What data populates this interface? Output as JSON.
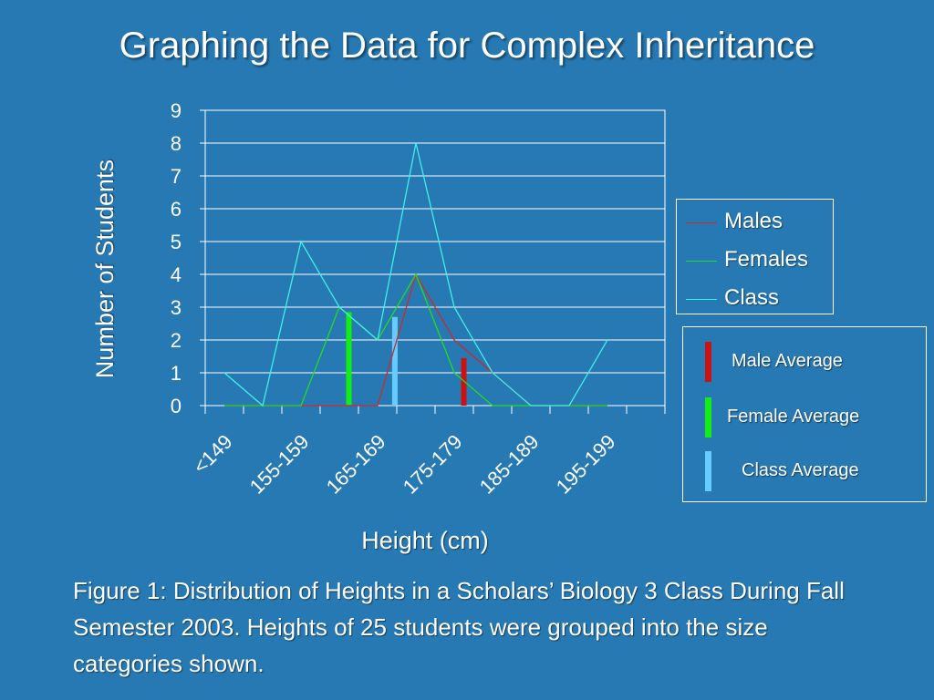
{
  "title": "Graphing the Data for Complex Inheritance",
  "caption": "Figure 1: Distribution of Heights in a Scholars’ Biology 3 Class During Fall Semester 2003. Heights of 25 students were grouped into the size categories shown.",
  "chart_data": {
    "type": "line",
    "xlabel": "Height (cm)",
    "ylabel": "Number of Students",
    "ylim": [
      0,
      9
    ],
    "yticks": [
      "0",
      "1",
      "2",
      "3",
      "4",
      "5",
      "6",
      "7",
      "8",
      "9"
    ],
    "x_tick_labels": [
      "<149",
      "155-159",
      "165-169",
      "175-179",
      "185-189",
      "195-199"
    ],
    "grid": true,
    "legend_position": "right",
    "x_range": [
      0,
      12
    ],
    "series": [
      {
        "name": "Males",
        "color": "#d02828",
        "x": [
          0.5,
          1.5,
          2.5,
          3.5,
          4.5,
          5.5,
          6.5,
          7.5,
          8.5,
          9.5,
          10.5
        ],
        "values": [
          0,
          0,
          0,
          0,
          0,
          4,
          2,
          1,
          0,
          0,
          0
        ]
      },
      {
        "name": "Females",
        "color": "#22dd22",
        "x": [
          0.5,
          1.5,
          2.5,
          3.5,
          4.5,
          5.5,
          6.5,
          7.5,
          8.5,
          9.5,
          10.5
        ],
        "values": [
          0,
          0,
          0,
          3,
          2,
          4,
          1,
          0,
          0,
          0,
          0
        ]
      },
      {
        "name": "Class",
        "color": "#40f0e8",
        "x": [
          0.5,
          1.5,
          2.5,
          3.5,
          4.5,
          5.5,
          6.5,
          7.5,
          8.5,
          9.5,
          10.5
        ],
        "values": [
          1,
          0,
          5,
          3,
          2,
          8,
          3,
          1,
          0,
          0,
          2
        ]
      }
    ],
    "averages": [
      {
        "label": "Male Average",
        "color": "#cc1111",
        "x": 6.75,
        "value": 1.45
      },
      {
        "label": "Female Average",
        "color": "#11ee11",
        "x": 3.75,
        "value": 2.85
      },
      {
        "label": "Class Average",
        "color": "#66ccff",
        "x": 4.95,
        "value": 2.7
      }
    ]
  }
}
